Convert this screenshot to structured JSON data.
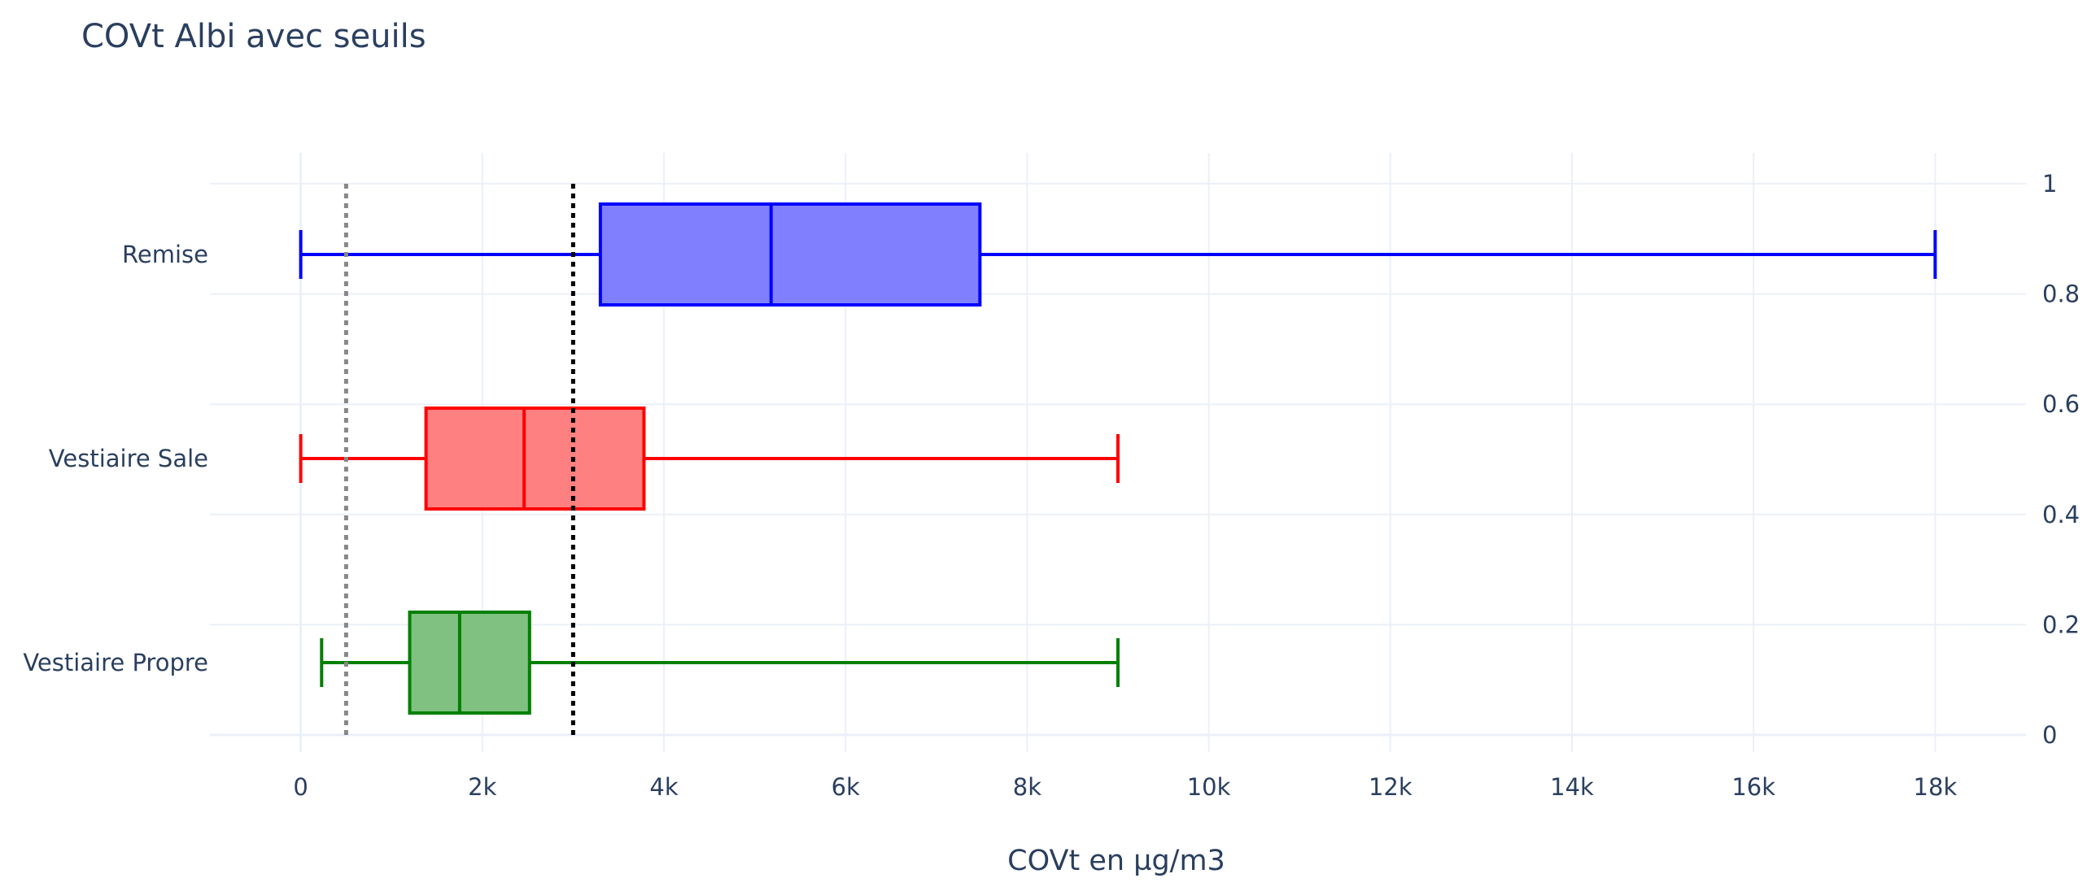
{
  "chart_data": {
    "type": "box",
    "orientation": "horizontal",
    "title": "COVt Albi avec seuils",
    "xlabel": "COVt en µg/m3",
    "ylabel": "",
    "xlim": [
      -1000,
      19000
    ],
    "x_ticks": [
      0,
      2000,
      4000,
      6000,
      8000,
      10000,
      12000,
      14000,
      16000,
      18000
    ],
    "x_tick_labels": [
      "0",
      "2k",
      "4k",
      "6k",
      "8k",
      "10k",
      "12k",
      "14k",
      "16k",
      "18k"
    ],
    "categories": [
      "Remise",
      "Vestiaire Sale",
      "Vestiaire Propre"
    ],
    "secondary_y_axis": {
      "side": "right",
      "ylim": [
        0,
        1
      ],
      "ticks": [
        0,
        0.2,
        0.4,
        0.6,
        0.8,
        1
      ],
      "tick_labels": [
        "0",
        "0.2",
        "0.4",
        "0.6",
        "0.8",
        "1"
      ]
    },
    "series": [
      {
        "category": "Remise",
        "min": 0,
        "q1": 3300,
        "median": 5180,
        "q3": 7480,
        "max": 18000,
        "color": "#0000ff",
        "fill": "#8080ff"
      },
      {
        "category": "Vestiaire Sale",
        "min": 0,
        "q1": 1380,
        "median": 2460,
        "q3": 3780,
        "max": 9000,
        "color": "#ff0000",
        "fill": "#ff8080"
      },
      {
        "category": "Vestiaire Propre",
        "min": 230,
        "q1": 1200,
        "median": 1750,
        "q3": 2520,
        "max": 9000,
        "color": "#008000",
        "fill": "#80c080"
      }
    ],
    "thresholds": [
      {
        "value": 500,
        "color": "#888888",
        "style": "dotted"
      },
      {
        "value": 3000,
        "color": "#000000",
        "style": "dotted"
      }
    ],
    "grid": true,
    "legend": "none"
  }
}
